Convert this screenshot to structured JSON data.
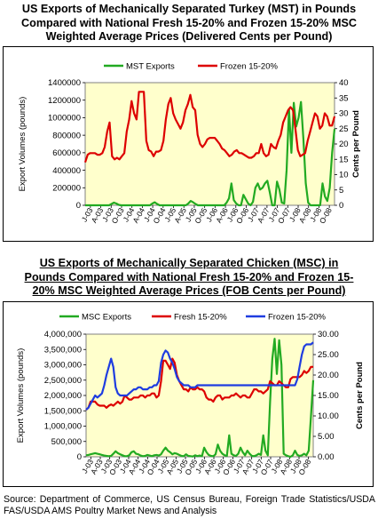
{
  "figure": {
    "source_note": "Source: Department of Commerce, US Census Bureau, Foreign Trade Statistics/USDA FAS/USDA AMS Poultry Market News and Analysis"
  },
  "chart_data": [
    {
      "type": "line",
      "title_lines": [
        "US Exports of Mechanically Separated Turkey (MST) in Pounds",
        "Compared with National Fresh 15-20% and Frozen 15-20% MSC",
        "Weighted Average Prices (Delivered Cents per Pound)"
      ],
      "ylabel": "Export Volumes (pounds)",
      "y2label": "Cents per Pound",
      "ylim": [
        0,
        1400000
      ],
      "y2lim": [
        0,
        40
      ],
      "yticks": [
        "0",
        "200000",
        "400000",
        "600000",
        "800000",
        "1000000",
        "1200000",
        "1400000"
      ],
      "y2ticks": [
        "0",
        "5",
        "10",
        "15",
        "20",
        "25",
        "30",
        "35",
        "40"
      ],
      "xticks": [
        "J-03",
        "A-03",
        "J-03",
        "O-03",
        "J-04",
        "A-04",
        "J-04",
        "O-04",
        "J-05",
        "A-05",
        "J-05",
        "O-05",
        "J-06",
        "A-06",
        "J-06",
        "O-06",
        "J-07",
        "A-07",
        "J-07",
        "O-07",
        "J-08",
        "A-08",
        "J-08",
        "O-08"
      ],
      "legend_position": "top",
      "grid": false,
      "series": [
        {
          "name": "MST Exports",
          "axis": "left",
          "color": "#22aa22",
          "values": [
            0,
            0,
            0,
            0,
            0,
            0,
            0,
            0,
            0,
            0,
            0,
            15000,
            30000,
            20000,
            5000,
            0,
            0,
            0,
            0,
            0,
            0,
            0,
            0,
            0,
            0,
            0,
            0,
            0,
            20000,
            35000,
            15000,
            0,
            0,
            0,
            0,
            0,
            0,
            0,
            0,
            0,
            0,
            0,
            0,
            20000,
            50000,
            35000,
            15000,
            0,
            0,
            0,
            0,
            0,
            0,
            0,
            0,
            0,
            0,
            0,
            0,
            30000,
            80000,
            250000,
            60000,
            20000,
            0,
            0,
            120000,
            70000,
            20000,
            0,
            40000,
            200000,
            250000,
            180000,
            200000,
            250000,
            280000,
            150000,
            0,
            0,
            270000,
            180000,
            30000,
            20000,
            400000,
            1100000,
            600000,
            1170000,
            900000,
            1000000,
            1180000,
            760000,
            250000,
            30000,
            0,
            0,
            0,
            0,
            0,
            250000,
            100000,
            50000,
            200000,
            600000,
            870000
          ]
        },
        {
          "name": "Frozen 15-20%",
          "axis": "right",
          "color": "#dd0000",
          "values": [
            14,
            16.5,
            17,
            17,
            17,
            16.5,
            16.5,
            17,
            19,
            24,
            27,
            16,
            15,
            15.5,
            15,
            16,
            17,
            24,
            28,
            34,
            30,
            28,
            37,
            37,
            37,
            21,
            18,
            17.5,
            16,
            17.5,
            17.5,
            18,
            21,
            28,
            33,
            35,
            30,
            28,
            26.5,
            25,
            27,
            31,
            33,
            36,
            32,
            31,
            23,
            20,
            19,
            20,
            21.5,
            22,
            22,
            22,
            21,
            20,
            18.5,
            18,
            17,
            16,
            16.5,
            17.5,
            18,
            17,
            17,
            16.5,
            16,
            15.5,
            15.5,
            16,
            17,
            17,
            20,
            17,
            16,
            16.5,
            20,
            19,
            18.5,
            21,
            23,
            27,
            29,
            31,
            32,
            31,
            25,
            18,
            16,
            16.5,
            17,
            21,
            24,
            27,
            30,
            29,
            25,
            26,
            30,
            29,
            26,
            26,
            29
          ]
        }
      ]
    },
    {
      "type": "line",
      "title_lines": [
        "US Exports of Mechanically Separated Chicken (MSC) in",
        "Pounds Compared with National Fresh 15-20% and Frozen 15-",
        "20% MSC Weighted Average Prices (FOB Cents per Pound)"
      ],
      "ylabel": "Export Volumes (pounds)",
      "y2label": "Cents per Pound",
      "ylim": [
        0,
        4000000
      ],
      "y2lim": [
        0,
        30
      ],
      "yticks": [
        "0",
        "500,000",
        "1,000,000",
        "1,500,000",
        "2,000,000",
        "2,500,000",
        "3,000,000",
        "3,500,000",
        "4,000,000"
      ],
      "y2ticks": [
        "0.00",
        "5.00",
        "10.00",
        "15.00",
        "20.00",
        "25.00",
        "30.00"
      ],
      "xticks": [
        "J-03",
        "A-03",
        "J-03",
        "O-03",
        "J-04",
        "A-04",
        "J-04",
        "O-04",
        "J-05",
        "A-05",
        "J-05",
        "O-05",
        "J-06",
        "A-06",
        "J-06",
        "O-06",
        "J-07",
        "A-07",
        "J-07",
        "O-07",
        "J-08",
        "A-08",
        "J-08",
        "O-08"
      ],
      "legend_position": "top",
      "grid": false,
      "series": [
        {
          "name": "MSC Exports",
          "axis": "left",
          "color": "#22aa22",
          "values": [
            50000,
            60000,
            80000,
            100000,
            120000,
            100000,
            80000,
            60000,
            40000,
            30000,
            20000,
            30000,
            100000,
            180000,
            120000,
            80000,
            50000,
            20000,
            20000,
            50000,
            150000,
            180000,
            100000,
            80000,
            40000,
            20000,
            30000,
            60000,
            40000,
            20000,
            50000,
            60000,
            40000,
            80000,
            200000,
            300000,
            200000,
            150000,
            80000,
            120000,
            100000,
            60000,
            30000,
            20000,
            80000,
            30000,
            20000,
            10000,
            50000,
            20000,
            40000,
            20000,
            300000,
            150000,
            60000,
            30000,
            20000,
            80000,
            400000,
            200000,
            100000,
            50000,
            30000,
            700000,
            100000,
            50000,
            30000,
            100000,
            300000,
            150000,
            50000,
            200000,
            100000,
            30000,
            20000,
            50000,
            100000,
            60000,
            700000,
            200000,
            50000,
            1800000,
            3200000,
            3850000,
            2700000,
            3800000,
            3000000,
            100000,
            50000,
            20000,
            0,
            50000,
            200000,
            60000,
            30000,
            50000,
            100000,
            50000,
            200000,
            1300000,
            2500000
          ]
        },
        {
          "name": "Fresh 15-20%",
          "axis": "right",
          "color": "#dd0000",
          "values": [
            11.5,
            12,
            13.5,
            13.5,
            13.5,
            12.8,
            12.5,
            12.5,
            12.5,
            12,
            12.5,
            12.8,
            12.5,
            13,
            13.5,
            13,
            13.5,
            15,
            14.5,
            14,
            14,
            14.5,
            14.5,
            14.5,
            15,
            15,
            14.5,
            15,
            15,
            15.5,
            15.5,
            14.5,
            15,
            18.5,
            23.5,
            23.5,
            22.5,
            21.5,
            24,
            23,
            20,
            18.5,
            17.5,
            16.5,
            16.5,
            16,
            17,
            16.5,
            16.5,
            17,
            16.5,
            16.5,
            16,
            14.5,
            14,
            14,
            13.5,
            14.5,
            15,
            15,
            14,
            14.5,
            14.5,
            14.5,
            15,
            15,
            15.5,
            15,
            14.5,
            15,
            15,
            14.5,
            14.5,
            15.5,
            16.5,
            16.5,
            16,
            16,
            15.5,
            16,
            16.5,
            18.5,
            18,
            17.5,
            17.5,
            18.5,
            18,
            17.5,
            17,
            17,
            19,
            19.5,
            19.5,
            19.5,
            19.5,
            20,
            21,
            20.5,
            21,
            22,
            22
          ]
        },
        {
          "name": "Frozen 15-20%",
          "axis": "right",
          "color": "#1f3de0",
          "values": [
            11.5,
            12,
            13,
            14,
            15,
            14.5,
            15,
            15.5,
            17.5,
            20,
            22,
            24,
            22,
            17,
            15.5,
            15,
            15,
            15,
            15,
            15.5,
            16,
            16.5,
            16.5,
            17,
            17,
            16.5,
            16.5,
            16.5,
            17,
            17,
            17.5,
            17.5,
            18.5,
            23,
            25,
            26,
            25.5,
            24,
            23,
            21.5,
            19.5,
            18.5,
            18,
            17.5,
            17.5,
            17.5,
            17,
            17,
            17,
            17.5,
            17.5,
            17.5,
            17.5,
            17.5,
            17.5,
            17.5,
            17.5,
            17.5,
            17.5,
            17.5,
            17.5,
            17.5,
            17.5,
            17.5,
            17.5,
            17.5,
            17.5,
            17.5,
            17.5,
            17.5,
            17.5,
            17.5,
            17.5,
            17.5,
            17.5,
            17.5,
            17.5,
            17.5,
            17.5,
            17.5,
            17.5,
            17.5,
            17.5,
            17.5,
            17.5,
            17.5,
            17.5,
            17.5,
            17.5,
            17.5,
            17.5,
            17.5,
            17.5,
            19,
            22,
            25,
            27,
            27.5,
            27.5,
            27.5,
            28
          ]
        }
      ]
    }
  ]
}
